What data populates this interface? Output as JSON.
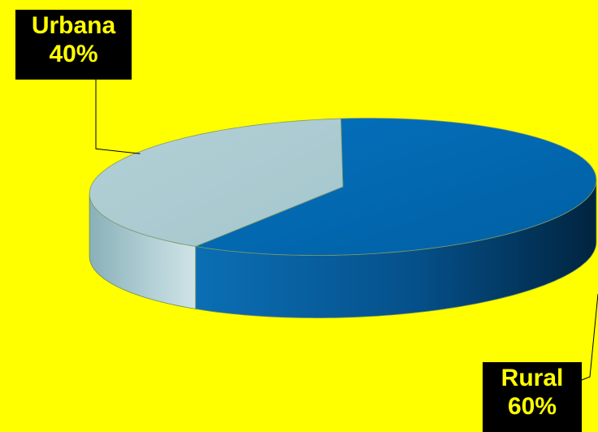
{
  "chart_data": {
    "type": "pie",
    "style": "3d",
    "slices": [
      {
        "label": "Rural",
        "value": 60,
        "value_label": "60%",
        "color": "#0068b0"
      },
      {
        "label": "Urbana",
        "value": 40,
        "value_label": "40%",
        "color": "#aecdd3"
      }
    ],
    "title": "",
    "legend": "none"
  },
  "colors": {
    "background": "#ffff00",
    "callout_bg": "#000000",
    "callout_text": "#ffff00"
  }
}
